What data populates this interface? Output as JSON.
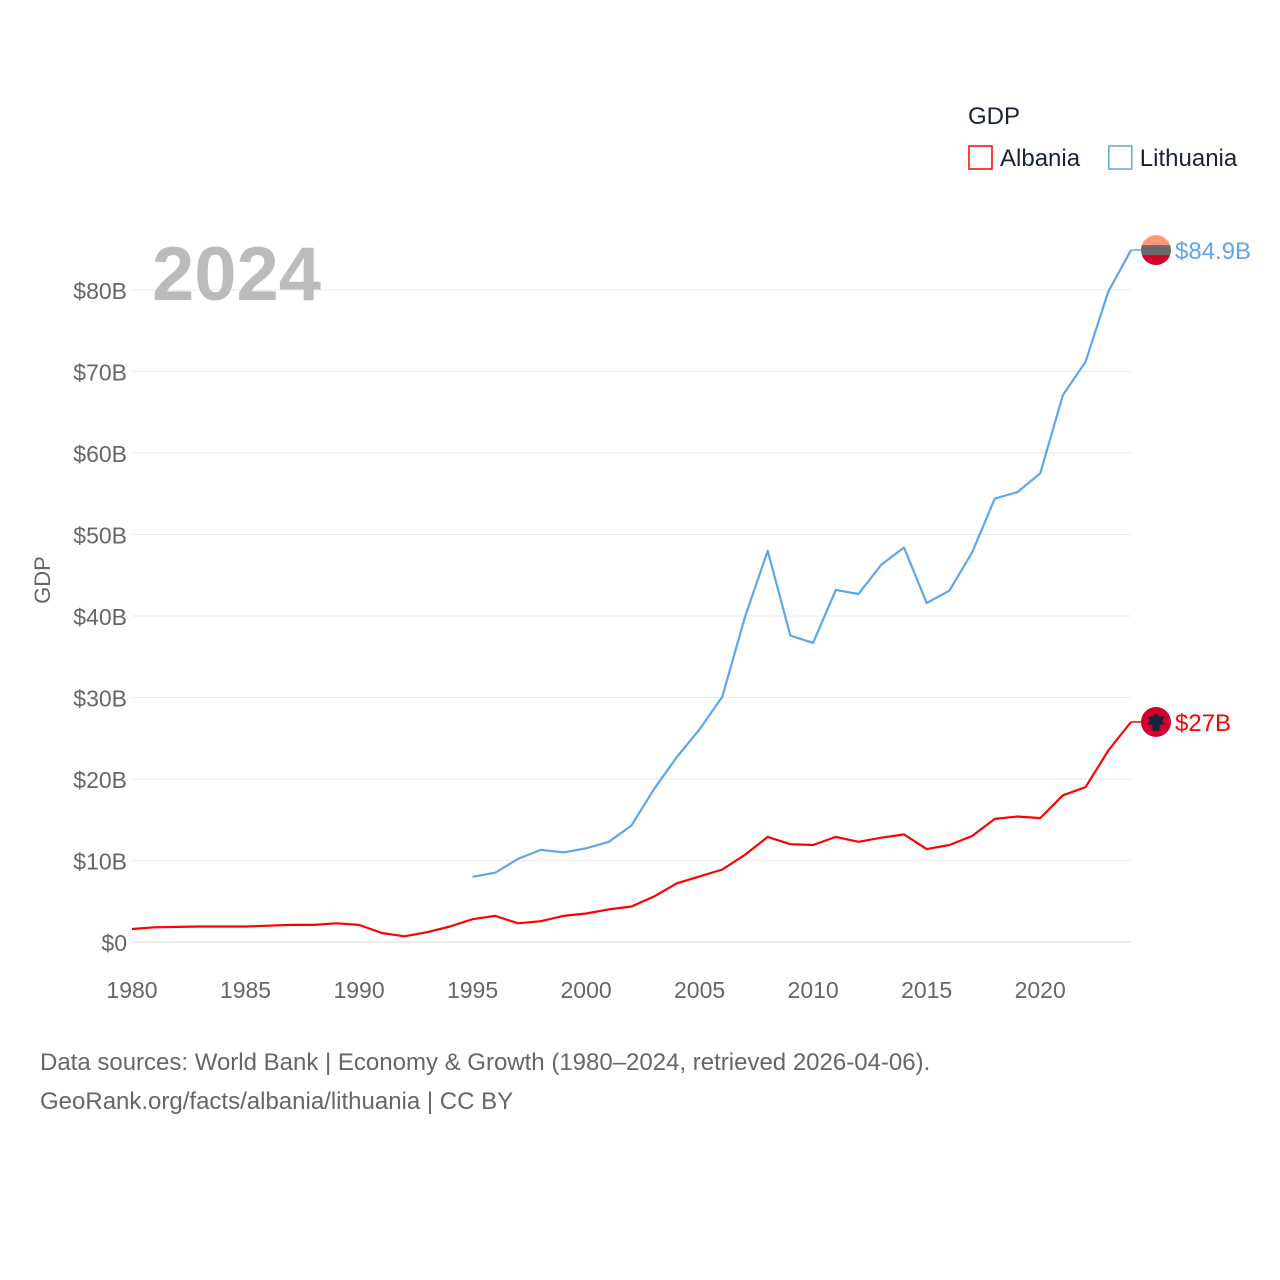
{
  "chart_data": {
    "type": "line",
    "title": "",
    "year_label": "2024",
    "xlabel": "",
    "ylabel": "GDP",
    "xlim": [
      1980,
      2024
    ],
    "ylim": [
      0,
      85
    ],
    "x_ticks": [
      1980,
      1985,
      1990,
      1995,
      2000,
      2005,
      2010,
      2015,
      2020
    ],
    "y_ticks": [
      0,
      10,
      20,
      30,
      40,
      50,
      60,
      70,
      80
    ],
    "y_tick_labels": [
      "$0",
      "$10B",
      "$20B",
      "$30B",
      "$40B",
      "$50B",
      "$60B",
      "$70B",
      "$80B"
    ],
    "grid": true,
    "legend": {
      "title": "GDP",
      "position": "top-right"
    },
    "series": [
      {
        "name": "Albania",
        "color": "#ff0000",
        "end_label": "$27B",
        "flag": "albania-flag",
        "x_start": 1980,
        "values": [
          1.6,
          1.8,
          1.85,
          1.9,
          1.9,
          1.9,
          2.0,
          2.1,
          2.1,
          2.3,
          2.1,
          1.1,
          0.7,
          1.2,
          1.9,
          2.8,
          3.2,
          2.3,
          2.55,
          3.2,
          3.5,
          4.0,
          4.35,
          5.6,
          7.2,
          8.05,
          8.9,
          10.7,
          12.9,
          12.0,
          11.9,
          12.9,
          12.3,
          12.8,
          13.2,
          11.4,
          11.9,
          13.0,
          15.1,
          15.4,
          15.2,
          18.0,
          19.0,
          23.5,
          27.0
        ]
      },
      {
        "name": "Lithuania",
        "color": "#5ea6ea",
        "end_label": "$84.9B",
        "flag": "lithuania-flag",
        "x_start": 1995,
        "values": [
          8.0,
          8.5,
          10.2,
          11.3,
          11.0,
          11.5,
          12.3,
          14.3,
          18.8,
          22.7,
          26.1,
          30.1,
          39.9,
          48.0,
          37.6,
          36.7,
          43.2,
          42.7,
          46.3,
          48.4,
          41.6,
          43.1,
          47.8,
          54.4,
          55.2,
          57.5,
          67.1,
          71.2,
          79.8,
          84.9
        ]
      }
    ]
  },
  "footer": {
    "line1": "Data sources: World Bank | Economy & Growth (1980–2024, retrieved 2026-04-06).",
    "line2": "GeoRank.org/facts/albania/lithuania | CC BY"
  }
}
